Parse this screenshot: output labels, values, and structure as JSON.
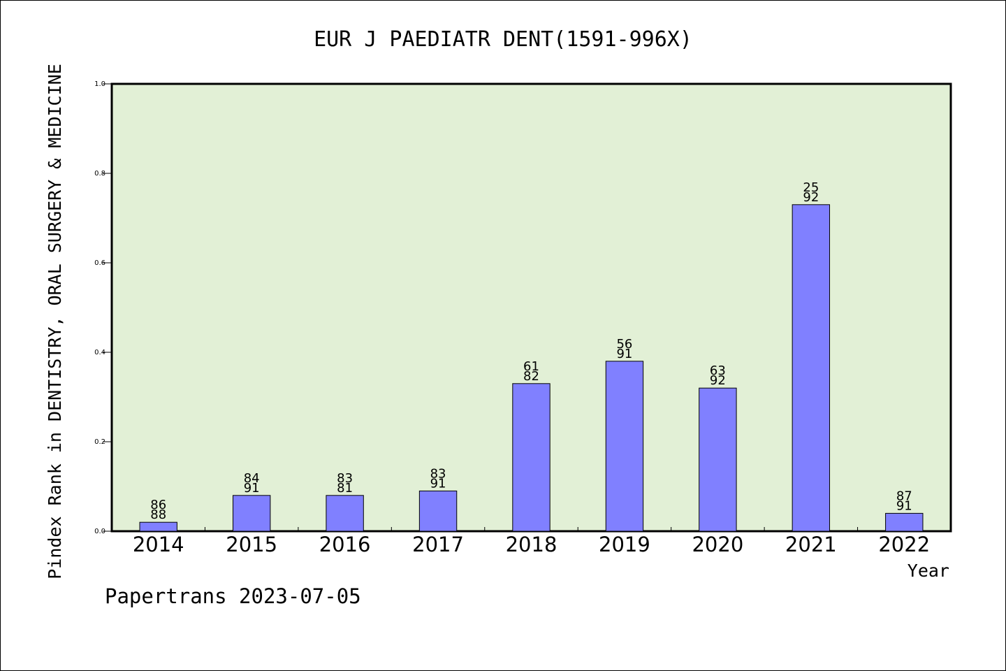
{
  "chart_data": {
    "type": "bar",
    "title": "EUR J PAEDIATR DENT(1591-996X)",
    "xlabel": "Year",
    "ylabel": "Pindex Rank in DENTISTRY, ORAL SURGERY & MEDICINE",
    "categories": [
      "2014",
      "2015",
      "2016",
      "2017",
      "2018",
      "2019",
      "2020",
      "2021",
      "2022"
    ],
    "values": [
      0.02,
      0.08,
      0.08,
      0.09,
      0.33,
      0.38,
      0.32,
      0.73,
      0.04
    ],
    "label_top": [
      "86",
      "84",
      "83",
      "83",
      "61",
      "56",
      "63",
      "25",
      "87"
    ],
    "label_bottom": [
      "88",
      "91",
      "81",
      "91",
      "82",
      "91",
      "92",
      "92",
      "91"
    ],
    "ylim": [
      0,
      1.0
    ],
    "yticks": [
      "0.0",
      "0.2",
      "0.4",
      "0.6",
      "0.8",
      "1.0"
    ],
    "grid": false,
    "colors": {
      "plot_background": "#e2f0d6",
      "bar_fill": "#8080ff",
      "bar_stroke": "#000000",
      "axis": "#000000"
    }
  },
  "footer": {
    "credit": "Papertrans 2023-07-05"
  }
}
